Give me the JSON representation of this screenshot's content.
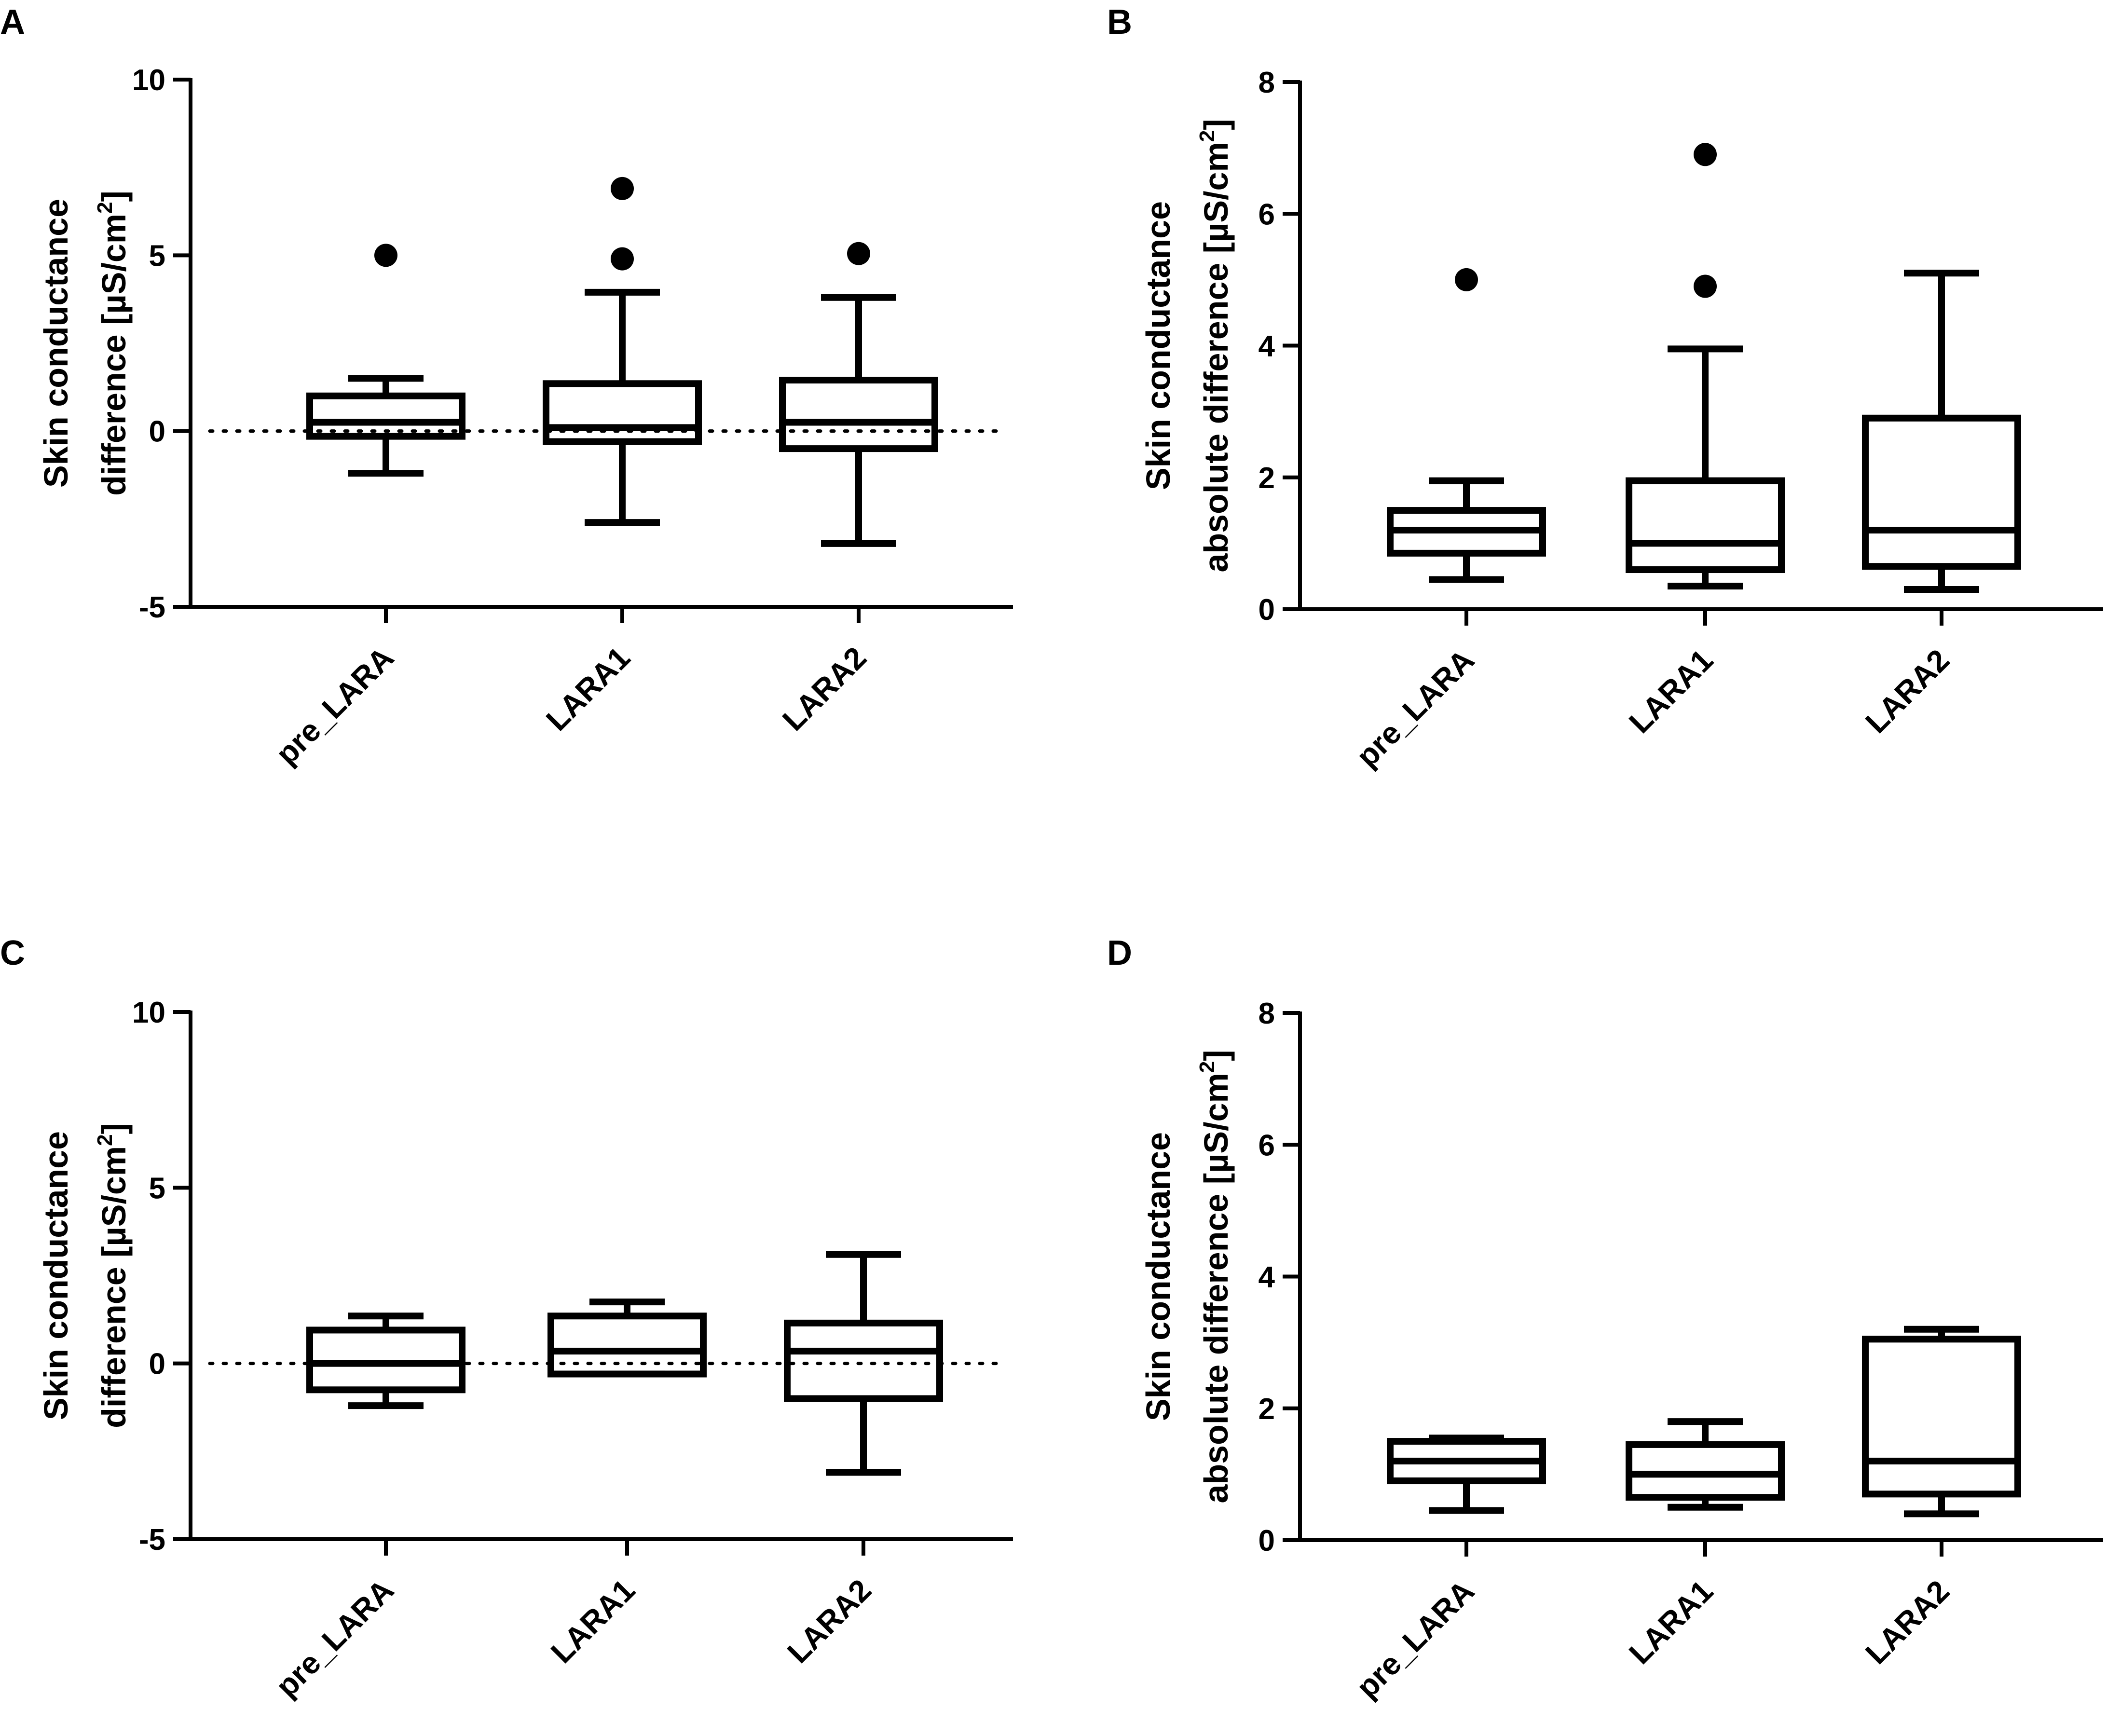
{
  "chart_data": [
    {
      "panel": "A",
      "type": "box",
      "ylabel_lines": [
        "Skin conductance",
        "difference [µS/cm",
        "2",
        "]"
      ],
      "ylim": [
        -5,
        10
      ],
      "yticks": [
        -5,
        0,
        5,
        10
      ],
      "ytick_labels": [
        "-5",
        "0",
        "5",
        "10"
      ],
      "zero_line": true,
      "categories": [
        "pre_LARA",
        "LARA1",
        "LARA2"
      ],
      "boxes": [
        {
          "min": -1.2,
          "q1": -0.15,
          "median": 0.25,
          "q3": 1.0,
          "max": 1.5,
          "outliers": [
            5.0
          ]
        },
        {
          "min": -2.6,
          "q1": -0.3,
          "median": 0.1,
          "q3": 1.35,
          "max": 3.95,
          "outliers": [
            4.9,
            6.9
          ]
        },
        {
          "min": -3.2,
          "q1": -0.5,
          "median": 0.25,
          "q3": 1.45,
          "max": 3.8,
          "outliers": [
            5.05
          ]
        }
      ]
    },
    {
      "panel": "B",
      "type": "box",
      "ylabel_lines": [
        "Skin conductance",
        "absolute difference [µS/cm",
        "2",
        "]"
      ],
      "ylim": [
        0,
        8
      ],
      "yticks": [
        0,
        2,
        4,
        6,
        8
      ],
      "ytick_labels": [
        "0",
        "2",
        "4",
        "6",
        "8"
      ],
      "zero_line": false,
      "categories": [
        "pre_LARA",
        "LARA1",
        "LARA2"
      ],
      "boxes": [
        {
          "min": 0.45,
          "q1": 0.85,
          "median": 1.2,
          "q3": 1.5,
          "max": 1.95,
          "outliers": [
            5.0
          ]
        },
        {
          "min": 0.35,
          "q1": 0.6,
          "median": 1.0,
          "q3": 1.95,
          "max": 3.95,
          "outliers": [
            4.9,
            6.9
          ]
        },
        {
          "min": 0.3,
          "q1": 0.65,
          "median": 1.2,
          "q3": 2.9,
          "max": 5.1,
          "outliers": []
        }
      ]
    },
    {
      "panel": "C",
      "type": "box",
      "ylabel_lines": [
        "Skin conductance",
        "difference [µS/cm",
        "2",
        "]"
      ],
      "ylim": [
        -5,
        10
      ],
      "yticks": [
        -5,
        0,
        5,
        10
      ],
      "ytick_labels": [
        "-5",
        "0",
        "5",
        "10"
      ],
      "zero_line": true,
      "categories": [
        "pre_LARA",
        "LARA1",
        "LARA2"
      ],
      "boxes": [
        {
          "min": -1.2,
          "q1": -0.75,
          "median": 0.0,
          "q3": 0.95,
          "max": 1.35,
          "outliers": []
        },
        {
          "min": -0.3,
          "q1": -0.3,
          "median": 0.35,
          "q3": 1.35,
          "max": 1.75,
          "outliers": []
        },
        {
          "min": -3.1,
          "q1": -1.0,
          "median": 0.35,
          "q3": 1.15,
          "max": 3.1,
          "outliers": []
        }
      ]
    },
    {
      "panel": "D",
      "type": "box",
      "ylabel_lines": [
        "Skin conductance",
        "absolute difference [µS/cm",
        "2",
        "]"
      ],
      "ylim": [
        0,
        8
      ],
      "yticks": [
        0,
        2,
        4,
        6,
        8
      ],
      "ytick_labels": [
        "0",
        "2",
        "4",
        "6",
        "8"
      ],
      "zero_line": false,
      "categories": [
        "pre_LARA",
        "LARA1",
        "LARA2"
      ],
      "boxes": [
        {
          "min": 0.45,
          "q1": 0.9,
          "median": 1.2,
          "q3": 1.5,
          "max": 1.55,
          "outliers": []
        },
        {
          "min": 0.5,
          "q1": 0.65,
          "median": 1.0,
          "q3": 1.45,
          "max": 1.8,
          "outliers": []
        },
        {
          "min": 0.4,
          "q1": 0.7,
          "median": 1.2,
          "q3": 3.05,
          "max": 3.2,
          "outliers": []
        }
      ]
    }
  ],
  "colors": {
    "stroke": "#000000",
    "background": "#ffffff"
  }
}
